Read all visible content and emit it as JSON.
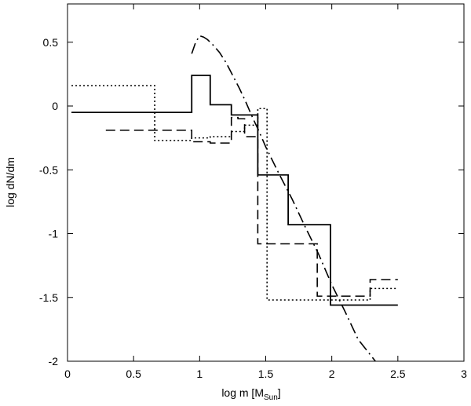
{
  "chart_data": {
    "type": "line",
    "title": "",
    "xlabel": "log m [M",
    "xlabel_sub": "Sun",
    "xlabel_suffix": "]",
    "ylabel": "log dN/dm",
    "xlim": [
      0,
      3
    ],
    "ylim": [
      -2,
      0.8
    ],
    "xticks": [
      0,
      0.5,
      1,
      1.5,
      2,
      2.5,
      3
    ],
    "xtick_labels": [
      "0",
      "0.5",
      "1",
      "1.5",
      "2",
      "2.5",
      "3"
    ],
    "yticks": [
      -2,
      -1.5,
      -1,
      -0.5,
      0,
      0.5
    ],
    "ytick_labels": [
      "-2",
      "-1.5",
      "-1",
      "-0.5",
      "0",
      "0.5"
    ],
    "grid": false,
    "legend": "none",
    "series": [
      {
        "style": "solid",
        "x": [
          0.03,
          0.94,
          0.94,
          1.08,
          1.08,
          1.24,
          1.24,
          1.34,
          1.34,
          1.44,
          1.44,
          1.67,
          1.67,
          1.99,
          1.99,
          2.5
        ],
        "y": [
          -0.05,
          -0.05,
          0.24,
          0.24,
          0.01,
          0.01,
          -0.07,
          -0.07,
          -0.07,
          -0.07,
          -0.54,
          -0.54,
          -0.93,
          -0.93,
          -1.56,
          -1.56
        ]
      },
      {
        "style": "dotted",
        "x": [
          0.03,
          0.66,
          0.66,
          0.94,
          0.94,
          1.08,
          1.08,
          1.24,
          1.24,
          1.34,
          1.34,
          1.44,
          1.44,
          1.51,
          1.51,
          2.29,
          2.29,
          2.5
        ],
        "y": [
          0.16,
          0.16,
          -0.27,
          -0.27,
          -0.25,
          -0.25,
          -0.24,
          -0.24,
          -0.2,
          -0.2,
          -0.15,
          -0.15,
          -0.02,
          -0.02,
          -1.52,
          -1.52,
          -1.43,
          -1.43
        ]
      },
      {
        "style": "dashed",
        "x": [
          0.29,
          0.94,
          0.94,
          1.08,
          1.08,
          1.24,
          1.24,
          1.29,
          1.29,
          1.34,
          1.34,
          1.44,
          1.44,
          1.49,
          1.49,
          1.89,
          1.89,
          2.29,
          2.29,
          2.5
        ],
        "y": [
          -0.19,
          -0.19,
          -0.28,
          -0.28,
          -0.29,
          -0.29,
          -0.09,
          -0.09,
          -0.1,
          -0.1,
          -0.24,
          -0.24,
          -1.08,
          -1.08,
          -1.08,
          -1.08,
          -1.49,
          -1.49,
          -1.36,
          -1.36
        ]
      },
      {
        "style": "dashdot",
        "x": [
          0.94,
          0.97,
          1.0,
          1.03,
          1.06,
          1.1,
          1.15,
          1.2,
          1.25,
          1.3,
          1.35,
          1.4,
          1.45,
          1.5,
          1.6,
          1.7,
          1.8,
          1.9,
          2.0,
          2.1,
          2.2,
          2.33
        ],
        "y": [
          0.41,
          0.5,
          0.55,
          0.54,
          0.52,
          0.48,
          0.42,
          0.34,
          0.24,
          0.14,
          0.03,
          -0.09,
          -0.2,
          -0.32,
          -0.53,
          -0.73,
          -0.95,
          -1.16,
          -1.4,
          -1.61,
          -1.83,
          -2.0
        ]
      }
    ]
  }
}
